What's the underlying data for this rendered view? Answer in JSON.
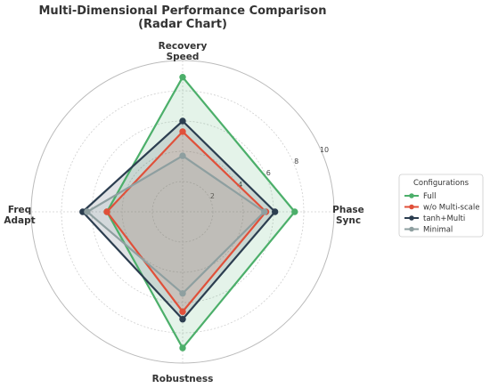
{
  "chart_data": {
    "type": "radar",
    "title_line1": "Multi-Dimensional Performance Comparison",
    "title_line2": "(Radar Chart)",
    "axes": [
      {
        "name": "Phase Sync",
        "line1": "Phase",
        "line2": "Sync"
      },
      {
        "name": "Recovery Speed",
        "line1": "Recovery",
        "line2": "Speed"
      },
      {
        "name": "Freq Adapt",
        "line1": "Freq",
        "line2": "Adapt"
      },
      {
        "name": "Robustness",
        "line1": "Robustness",
        "line2": ""
      }
    ],
    "r_ticks": [
      "2",
      "4",
      "6",
      "8",
      "10"
    ],
    "r_range": [
      0,
      10
    ],
    "grid": true,
    "legend": {
      "title": "Configurations",
      "placement": "right"
    },
    "series": [
      {
        "name": "Full",
        "color": "#4CAF6A",
        "values": [
          7.4,
          8.9,
          5.0,
          9.0
        ]
      },
      {
        "name": "w/o Multi-scale",
        "color": "#E0503A",
        "values": [
          5.5,
          5.3,
          5.0,
          6.6
        ]
      },
      {
        "name": "tanh+Multi",
        "color": "#2C3E50",
        "values": [
          6.1,
          6.0,
          6.6,
          7.1
        ]
      },
      {
        "name": "Minimal",
        "color": "#8E9FA0",
        "values": [
          5.4,
          3.7,
          6.3,
          5.4
        ]
      }
    ]
  }
}
